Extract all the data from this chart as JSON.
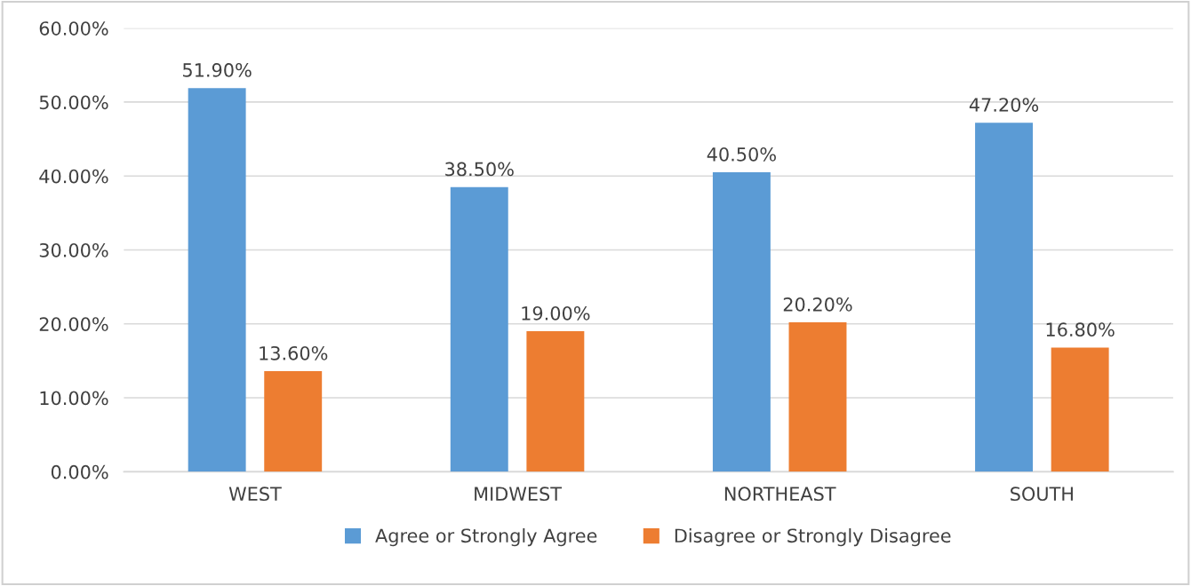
{
  "chart_data": {
    "type": "bar",
    "categories": [
      "WEST",
      "MIDWEST",
      "NORTHEAST",
      "SOUTH"
    ],
    "series": [
      {
        "name": "Agree or Strongly Agree",
        "color": "#5b9bd5",
        "values": [
          51.9,
          38.5,
          40.5,
          47.2
        ],
        "value_labels": [
          "51.90%",
          "38.50%",
          "40.50%",
          "47.20%"
        ]
      },
      {
        "name": "Disagree or Strongly Disagree",
        "color": "#ed7d31",
        "values": [
          13.6,
          19.0,
          20.2,
          16.8
        ],
        "value_labels": [
          "13.60%",
          "19.00%",
          "20.20%",
          "16.80%"
        ]
      }
    ],
    "ylim": [
      0,
      60
    ],
    "yticks": [
      {
        "value": 0,
        "label": "0.00%"
      },
      {
        "value": 10,
        "label": "10.00%"
      },
      {
        "value": 20,
        "label": "20.00%"
      },
      {
        "value": 30,
        "label": "30.00%"
      },
      {
        "value": 40,
        "label": "40.00%"
      },
      {
        "value": 50,
        "label": "50.00%"
      },
      {
        "value": 60,
        "label": "60.00%"
      }
    ],
    "grid": "y",
    "legend": "bottom"
  }
}
